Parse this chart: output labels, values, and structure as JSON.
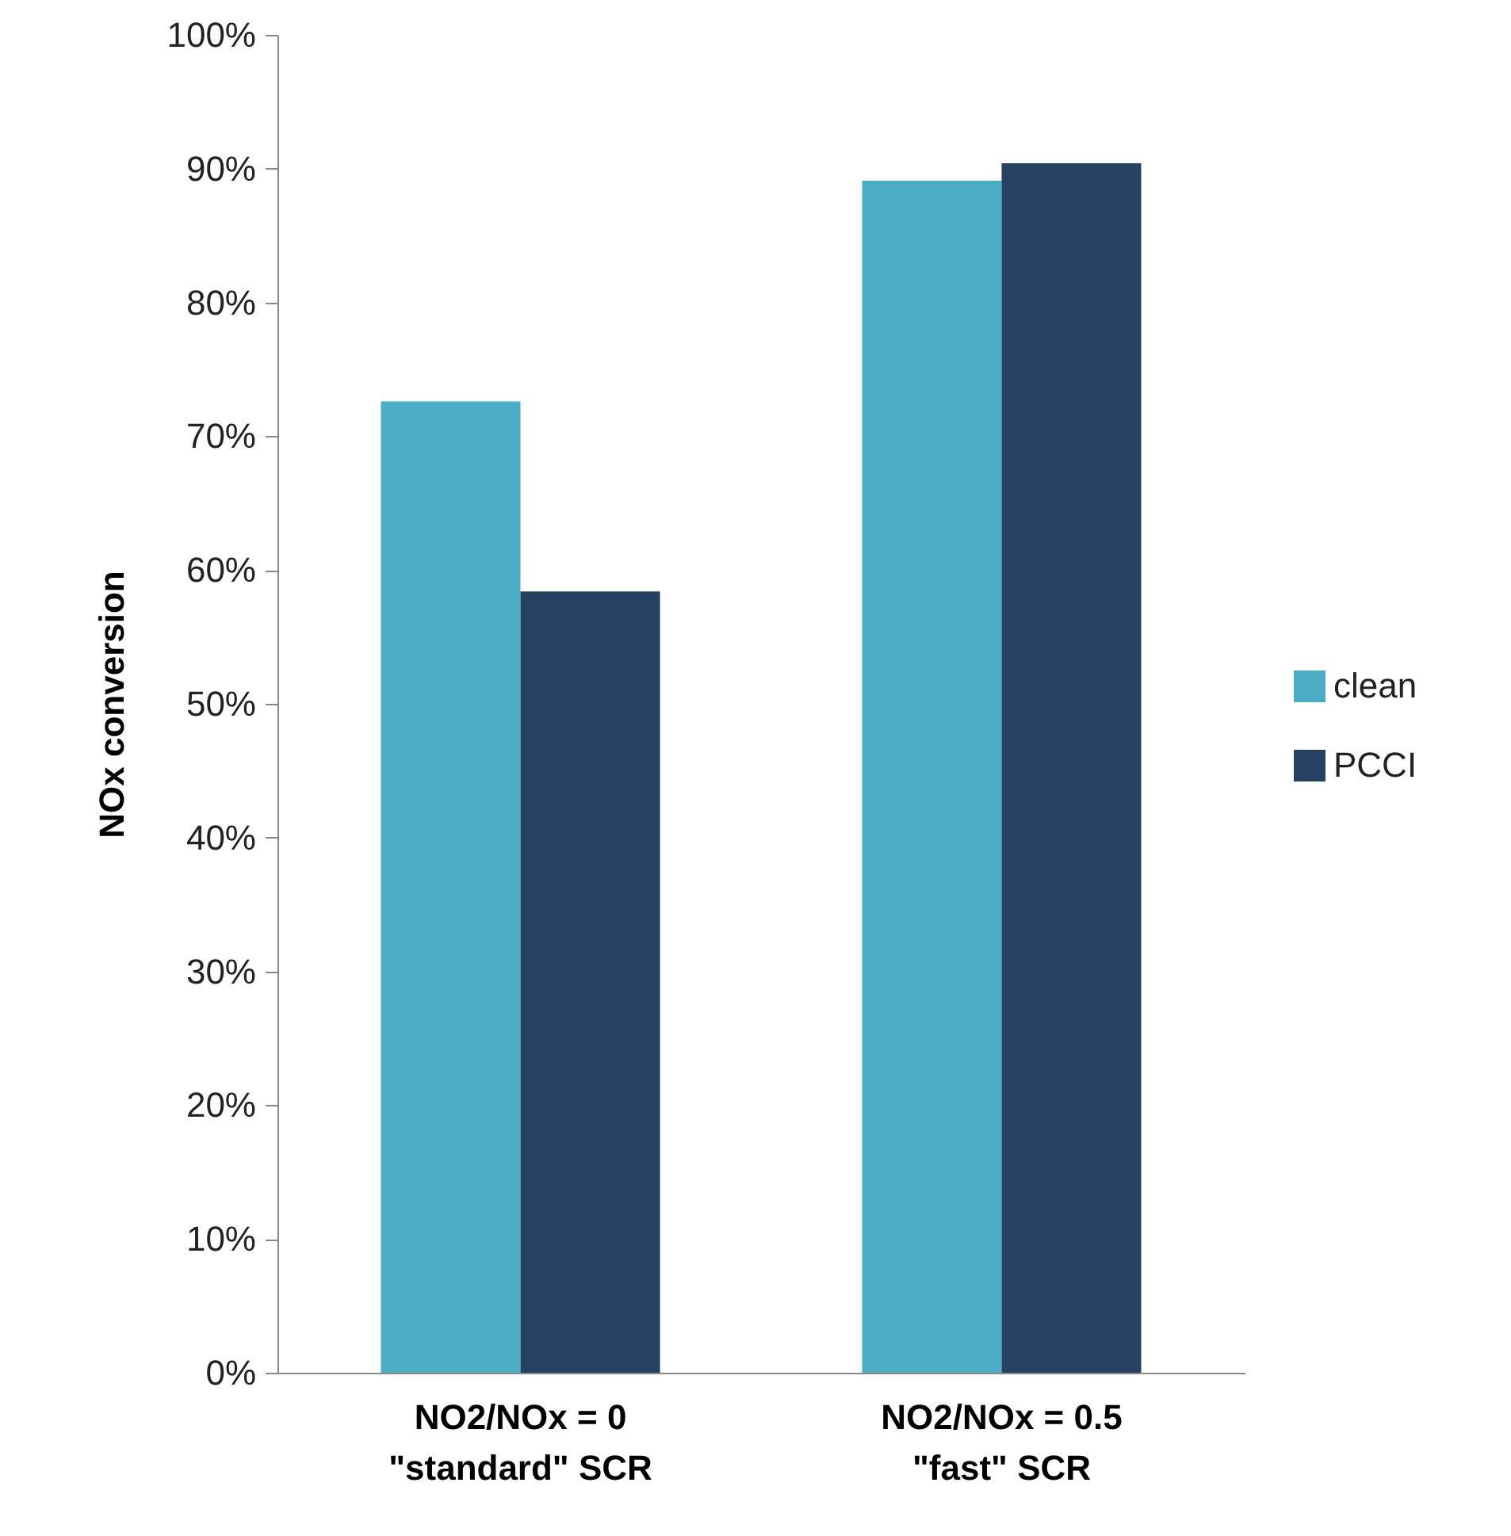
{
  "chart_data": {
    "type": "bar",
    "ylabel": "NOx conversion",
    "categories": [
      "NO2/NOx = 0\n\"standard\" SCR",
      "NO2/NOx = 0.5\n\"fast\" SCR"
    ],
    "series": [
      {
        "name": "clean",
        "color": "#4bacc6",
        "values": [
          72.6,
          89.1
        ]
      },
      {
        "name": "PCCI",
        "color": "#264061",
        "values": [
          58.4,
          90.4
        ]
      }
    ],
    "ylim": [
      0,
      100
    ],
    "yticks": [
      {
        "value": 0,
        "label": "0%"
      },
      {
        "value": 10,
        "label": "10%"
      },
      {
        "value": 20,
        "label": "20%"
      },
      {
        "value": 30,
        "label": "30%"
      },
      {
        "value": 40,
        "label": "40%"
      },
      {
        "value": 50,
        "label": "50%"
      },
      {
        "value": 60,
        "label": "60%"
      },
      {
        "value": 70,
        "label": "70%"
      },
      {
        "value": 80,
        "label": "80%"
      },
      {
        "value": 90,
        "label": "90%"
      },
      {
        "value": 100,
        "label": "100%"
      }
    ],
    "grid": false,
    "legend": "right"
  }
}
